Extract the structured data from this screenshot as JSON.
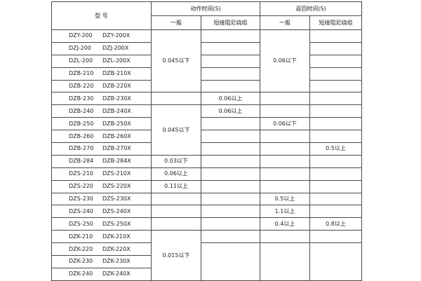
{
  "header": {
    "model": "型 号",
    "action_time": "动作时间(S)",
    "return_time": "返回时间(S)",
    "general": "一般",
    "short_damping": "短接阻尼绕组"
  },
  "rows": [
    {
      "a": "DZY-200",
      "b": "DZY-200X",
      "ag": "0.045以下",
      "as": "",
      "rg": "0.06以下",
      "rs": ""
    },
    {
      "a": "DZJ-200",
      "b": "DZJ-200X",
      "ag": null,
      "as": "",
      "rg": null,
      "rs": ""
    },
    {
      "a": "DZL-200",
      "b": "DZL-200X",
      "ag": null,
      "as": "",
      "rg": null,
      "rs": ""
    },
    {
      "a": "DZB-210",
      "b": "DZB-210X",
      "ag": null,
      "as": "",
      "rg": null,
      "rs": ""
    },
    {
      "a": "DZB-220",
      "b": "DZB-220X",
      "ag": null,
      "as": "",
      "rg": null,
      "rs": ""
    },
    {
      "a": "DZB-230",
      "b": "DZB-230X",
      "ag": "",
      "as": "0.06以上",
      "rg": "",
      "rs": ""
    },
    {
      "a": "DZB-240",
      "b": "DZB-240X",
      "ag": "0.045以下",
      "as": "0.06以上",
      "rg": "",
      "rs": ""
    },
    {
      "a": "DZB-250",
      "b": "DZB-250X",
      "ag": null,
      "as": "",
      "rg": "0.06以下",
      "rs": ""
    },
    {
      "a": "DZB-260",
      "b": "DZB-260X",
      "ag": null,
      "as": "",
      "rg": "",
      "rs": ""
    },
    {
      "a": "DZB-270",
      "b": "DZB-270X",
      "ag": null,
      "as": "",
      "rg": "",
      "rs": "0.5以上"
    },
    {
      "a": "DZB-284",
      "b": "DZB-284X",
      "ag": "0.03以下",
      "as": "",
      "rg": "",
      "rs": ""
    },
    {
      "a": "DZS-210",
      "b": "DZS-210X",
      "ag": "0.06以上",
      "as": "",
      "rg": "",
      "rs": ""
    },
    {
      "a": "DZS-220",
      "b": "DZS-220X",
      "ag": "0.11以上",
      "as": "",
      "rg": "",
      "rs": ""
    },
    {
      "a": "DZS-230",
      "b": "DZS-230X",
      "ag": "",
      "as": "",
      "rg": "0.5以上",
      "rs": ""
    },
    {
      "a": "DZS-240",
      "b": "DZS-240X",
      "ag": "",
      "as": "",
      "rg": "1.1以上",
      "rs": ""
    },
    {
      "a": "DZS-250",
      "b": "DZS-250X",
      "ag": "",
      "as": "",
      "rg": "0.4以上",
      "rs": "0.8以上"
    },
    {
      "a": "DZK-210",
      "b": "DZK-210X",
      "ag": "0.015以下",
      "as": "",
      "rg": "",
      "rs": ""
    },
    {
      "a": "DZK-220",
      "b": "DZK-220X",
      "ag": null,
      "as": "",
      "rg": "",
      "rs": ""
    },
    {
      "a": "DZK-230",
      "b": "DZK-230X",
      "ag": null,
      "as": null,
      "rg": null,
      "rs": null
    },
    {
      "a": "DZK-240",
      "b": "DZK-240X",
      "ag": null,
      "as": null,
      "rg": null,
      "rs": null
    }
  ]
}
